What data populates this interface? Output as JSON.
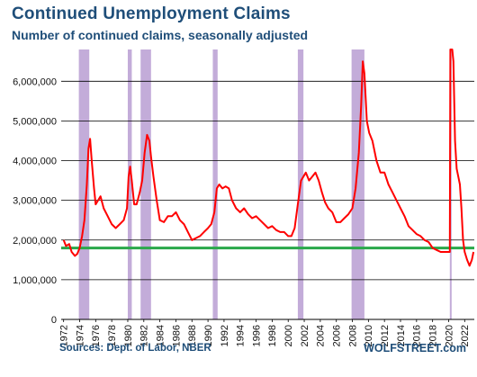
{
  "chart_data": {
    "type": "line",
    "title": "Continued Unemployment Claims",
    "subtitle": "Number of continued claims, seasonally adjusted",
    "source": "Sources: Dept. of Labor, NBER",
    "brand": "WOLFSTREET.com",
    "xlabel": "",
    "ylabel": "",
    "xlim": [
      1971.7,
      2023.2
    ],
    "ylim": [
      0,
      6800000
    ],
    "yticks": [
      0,
      1000000,
      2000000,
      3000000,
      4000000,
      5000000,
      6000000
    ],
    "ytick_labels": [
      "0",
      "1,000,000",
      "2,000,000",
      "3,000,000",
      "4,000,000",
      "5,000,000",
      "6,000,000"
    ],
    "xticks": [
      1972,
      1974,
      1976,
      1978,
      1980,
      1982,
      1984,
      1986,
      1988,
      1990,
      1992,
      1994,
      1996,
      1998,
      2000,
      2002,
      2004,
      2006,
      2008,
      2010,
      2012,
      2014,
      2016,
      2018,
      2020,
      2022
    ],
    "xtick_labels": [
      "1972",
      "1974",
      "1976",
      "1978",
      "1980",
      "1982",
      "1984",
      "1986",
      "1988",
      "1990",
      "1992",
      "1994",
      "1996",
      "1998",
      "2000",
      "2002",
      "2004",
      "2006",
      "2008",
      "2010",
      "2012",
      "2014",
      "2016",
      "2018",
      "2020",
      "2022"
    ],
    "grid": true,
    "recessions": [
      [
        1973.9,
        1975.2
      ],
      [
        1980.0,
        1980.5
      ],
      [
        1981.6,
        1982.9
      ],
      [
        1990.6,
        1991.2
      ],
      [
        2001.2,
        2001.9
      ],
      [
        2007.9,
        2009.5
      ],
      [
        2020.15,
        2020.35
      ]
    ],
    "reference_line": {
      "value": 1800000,
      "color": "#2aa84a"
    },
    "colors": {
      "line": "#ff0000",
      "recession": "#c3acd9",
      "grid": "#000000",
      "text": "#1f4e79"
    },
    "series": [
      {
        "x": [
          1972.0,
          1972.3,
          1972.7,
          1973.0,
          1973.4,
          1973.7,
          1974.0,
          1974.3,
          1974.6,
          1974.9,
          1975.1,
          1975.3,
          1975.5,
          1975.8,
          1976.0,
          1976.3,
          1976.6,
          1977.0,
          1977.5,
          1978.0,
          1978.5,
          1979.0,
          1979.5,
          1979.9,
          1980.1,
          1980.3,
          1980.5,
          1980.8,
          1981.1,
          1981.5,
          1981.8,
          1982.1,
          1982.4,
          1982.7,
          1982.9,
          1983.2,
          1983.6,
          1984.0,
          1984.5,
          1985.0,
          1985.5,
          1986.0,
          1986.5,
          1987.0,
          1987.5,
          1988.0,
          1988.5,
          1989.0,
          1989.5,
          1990.0,
          1990.4,
          1990.8,
          1991.1,
          1991.4,
          1991.8,
          1992.2,
          1992.6,
          1993.0,
          1993.5,
          1994.0,
          1994.5,
          1995.0,
          1995.5,
          1996.0,
          1996.5,
          1997.0,
          1997.5,
          1998.0,
          1998.5,
          1999.0,
          1999.5,
          2000.0,
          2000.4,
          2000.8,
          2001.2,
          2001.6,
          2001.9,
          2002.2,
          2002.6,
          2003.0,
          2003.4,
          2003.8,
          2004.2,
          2004.6,
          2005.0,
          2005.5,
          2006.0,
          2006.5,
          2007.0,
          2007.5,
          2008.0,
          2008.4,
          2008.8,
          2009.1,
          2009.3,
          2009.5,
          2009.8,
          2010.1,
          2010.5,
          2011.0,
          2011.5,
          2012.0,
          2012.5,
          2013.0,
          2013.5,
          2014.0,
          2014.5,
          2015.0,
          2015.5,
          2016.0,
          2016.5,
          2017.0,
          2017.5,
          2018.0,
          2018.5,
          2019.0,
          2019.5,
          2020.0,
          2020.15,
          2020.22,
          2020.35,
          2020.45,
          2020.6,
          2020.8,
          2021.0,
          2021.2,
          2021.4,
          2021.6,
          2021.8,
          2022.0,
          2022.3,
          2022.6,
          2022.9,
          2023.1
        ],
        "y": [
          2000000,
          1850000,
          1900000,
          1700000,
          1600000,
          1650000,
          1800000,
          2100000,
          2500000,
          3400000,
          4300000,
          4550000,
          4000000,
          3300000,
          2900000,
          3000000,
          3100000,
          2800000,
          2600000,
          2400000,
          2300000,
          2400000,
          2500000,
          2800000,
          3600000,
          3850000,
          3500000,
          2900000,
          2900000,
          3200000,
          3500000,
          4200000,
          4650000,
          4500000,
          4100000,
          3600000,
          3000000,
          2500000,
          2450000,
          2600000,
          2600000,
          2700000,
          2500000,
          2400000,
          2200000,
          2000000,
          2050000,
          2100000,
          2200000,
          2300000,
          2400000,
          2700000,
          3300000,
          3400000,
          3300000,
          3350000,
          3300000,
          3000000,
          2800000,
          2700000,
          2800000,
          2650000,
          2550000,
          2600000,
          2500000,
          2400000,
          2300000,
          2350000,
          2250000,
          2200000,
          2200000,
          2100000,
          2100000,
          2300000,
          2900000,
          3500000,
          3600000,
          3700000,
          3500000,
          3600000,
          3700000,
          3500000,
          3200000,
          2950000,
          2800000,
          2700000,
          2450000,
          2450000,
          2550000,
          2650000,
          2800000,
          3300000,
          4200000,
          5400000,
          6500000,
          6200000,
          5000000,
          4700000,
          4500000,
          4000000,
          3700000,
          3700000,
          3400000,
          3200000,
          3000000,
          2800000,
          2600000,
          2350000,
          2250000,
          2150000,
          2100000,
          2000000,
          1950000,
          1800000,
          1750000,
          1700000,
          1700000,
          1700000,
          1700000,
          6800000,
          6800000,
          6800000,
          6500000,
          4500000,
          3800000,
          3600000,
          3400000,
          2800000,
          2000000,
          1700000,
          1500000,
          1350000,
          1500000,
          1700000
        ]
      }
    ]
  }
}
